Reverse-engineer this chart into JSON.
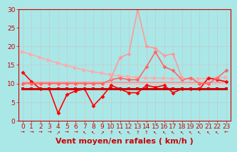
{
  "title": "",
  "xlabel": "Vent moyen/en rafales ( km/h )",
  "background_color": "#aae8e8",
  "grid_color": "#c8c8c8",
  "xlim": [
    -0.5,
    23.5
  ],
  "ylim": [
    0,
    30
  ],
  "yticks": [
    0,
    5,
    10,
    15,
    20,
    25,
    30
  ],
  "xticks": [
    0,
    1,
    2,
    3,
    4,
    5,
    6,
    7,
    8,
    9,
    10,
    11,
    12,
    13,
    14,
    15,
    16,
    17,
    18,
    19,
    20,
    21,
    22,
    23
  ],
  "lines": [
    {
      "comment": "long pink declining line from ~18 to ~12",
      "x": [
        0,
        1,
        2,
        3,
        4,
        5,
        6,
        7,
        8,
        9,
        10,
        11,
        12,
        13,
        14,
        15,
        16,
        17,
        18,
        19,
        20,
        21,
        22,
        23
      ],
      "y": [
        18.5,
        17.8,
        17.0,
        16.2,
        15.5,
        14.8,
        14.2,
        13.6,
        13.1,
        12.7,
        12.3,
        12.0,
        11.8,
        11.6,
        11.5,
        11.4,
        11.4,
        11.3,
        11.3,
        11.3,
        11.3,
        11.4,
        11.5,
        11.6
      ],
      "color": "#ffaaaa",
      "lw": 1.2,
      "marker": ">",
      "ms": 4
    },
    {
      "comment": "flat line around 10.5 - medium pink",
      "x": [
        0,
        1,
        2,
        3,
        4,
        5,
        6,
        7,
        8,
        9,
        10,
        11,
        12,
        13,
        14,
        15,
        16,
        17,
        18,
        19,
        20,
        21,
        22,
        23
      ],
      "y": [
        10.2,
        10.2,
        10.2,
        10.2,
        10.2,
        10.2,
        10.2,
        10.2,
        10.2,
        10.2,
        10.2,
        10.2,
        10.2,
        10.2,
        10.2,
        10.2,
        10.2,
        10.2,
        10.2,
        10.2,
        10.2,
        10.2,
        10.2,
        10.2
      ],
      "color": "#ff9999",
      "lw": 1.5,
      "marker": null,
      "ms": 0
    },
    {
      "comment": "slightly lower flat line ~9.5",
      "x": [
        0,
        1,
        2,
        3,
        4,
        5,
        6,
        7,
        8,
        9,
        10,
        11,
        12,
        13,
        14,
        15,
        16,
        17,
        18,
        19,
        20,
        21,
        22,
        23
      ],
      "y": [
        9.5,
        9.5,
        9.5,
        9.5,
        9.5,
        9.5,
        9.5,
        9.5,
        9.5,
        9.5,
        9.5,
        9.5,
        9.5,
        9.5,
        9.5,
        9.5,
        9.5,
        9.5,
        9.5,
        9.5,
        9.5,
        9.5,
        9.5,
        9.5
      ],
      "color": "#ffcccc",
      "lw": 1.0,
      "marker": null,
      "ms": 0
    },
    {
      "comment": "dark red wavy line with dip at x=4 to 2, x=8 to 4",
      "x": [
        0,
        1,
        2,
        3,
        4,
        5,
        6,
        7,
        8,
        9,
        10,
        11,
        12,
        13,
        14,
        15,
        16,
        17,
        18,
        19,
        20,
        21,
        22,
        23
      ],
      "y": [
        13.0,
        10.5,
        8.5,
        8.5,
        2.0,
        7.0,
        8.0,
        8.5,
        4.0,
        6.5,
        9.5,
        8.5,
        7.5,
        7.5,
        9.5,
        9.0,
        9.5,
        7.5,
        8.5,
        8.5,
        8.5,
        11.5,
        11.0,
        10.5
      ],
      "color": "#ff0000",
      "lw": 1.2,
      "marker": "D",
      "ms": 3
    },
    {
      "comment": "bold flat dark red line ~8.5",
      "x": [
        0,
        1,
        2,
        3,
        4,
        5,
        6,
        7,
        8,
        9,
        10,
        11,
        12,
        13,
        14,
        15,
        16,
        17,
        18,
        19,
        20,
        21,
        22,
        23
      ],
      "y": [
        8.5,
        8.5,
        8.5,
        8.5,
        8.5,
        8.5,
        8.5,
        8.5,
        8.5,
        8.5,
        8.5,
        8.5,
        8.5,
        8.5,
        8.5,
        8.5,
        8.5,
        8.5,
        8.5,
        8.5,
        8.5,
        8.5,
        8.5,
        8.5
      ],
      "color": "#cc0000",
      "lw": 2.2,
      "marker": "s",
      "ms": 2.5
    },
    {
      "comment": "medium pink line - starts around x=10, goes up to ~19 at x=15, then down to ~13 at end",
      "x": [
        0,
        1,
        2,
        3,
        4,
        5,
        6,
        7,
        8,
        9,
        10,
        11,
        12,
        13,
        14,
        15,
        16,
        17,
        18,
        19,
        20,
        21,
        22,
        23
      ],
      "y": [
        10.0,
        10.0,
        10.0,
        10.0,
        10.0,
        10.0,
        10.0,
        10.0,
        10.0,
        10.0,
        11.0,
        11.5,
        11.0,
        11.0,
        14.5,
        18.5,
        14.5,
        13.5,
        11.0,
        11.5,
        10.0,
        10.0,
        11.5,
        13.5
      ],
      "color": "#ff6666",
      "lw": 1.2,
      "marker": "D",
      "ms": 3
    },
    {
      "comment": "spike line - starts x=10, peaks at ~30 at x=13, then down",
      "x": [
        10,
        11,
        12,
        13,
        14,
        15,
        16,
        17,
        18
      ],
      "y": [
        11.5,
        17.0,
        18.0,
        30.0,
        20.0,
        19.5,
        17.5,
        18.0,
        11.5
      ],
      "color": "#ff9999",
      "lw": 1.2,
      "marker": "D",
      "ms": 3
    }
  ],
  "xlabel_color": "#cc0000",
  "xlabel_fontsize": 8,
  "tick_color": "#cc0000",
  "tick_fontsize": 6.5,
  "arrow_chars": [
    "→",
    "→",
    "→",
    "→",
    "↗",
    "→",
    "→",
    "↖",
    "↖",
    "↗",
    "↑",
    "↖",
    "↖",
    "↑",
    "↑",
    "↖",
    "↖",
    "↖",
    "↖",
    "↖",
    "↖",
    "↖",
    "↖",
    "←"
  ]
}
